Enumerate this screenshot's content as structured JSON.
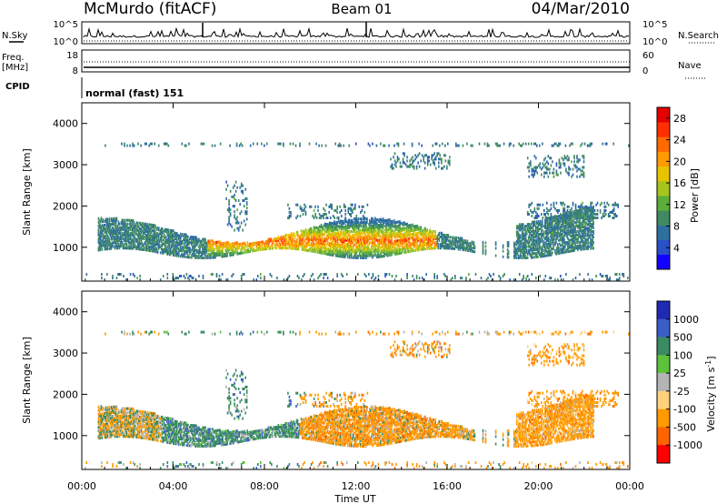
{
  "header": {
    "station": "McMurdo (fitACF)",
    "beam": "Beam 01",
    "date": "04/Mar/2010"
  },
  "noise_panel": {
    "left_label": "N.Sky",
    "left_ticks": [
      "10^5",
      "10^0"
    ],
    "right_label": "N.Search",
    "right_ticks": [
      "10^5",
      "10^0"
    ]
  },
  "freq_panel": {
    "left_label_1": "Freq.",
    "left_label_2": "[MHz]",
    "left_ticks": [
      "18",
      "8"
    ],
    "right_label": "Nave",
    "right_ticks": [
      "60",
      "0"
    ]
  },
  "cpid_panel": {
    "label": "CPID",
    "mode": "normal (fast) 151"
  },
  "time_axis": {
    "label": "Time UT",
    "ticks": [
      "00:00",
      "04:00",
      "08:00",
      "12:00",
      "16:00",
      "20:00",
      "00:00"
    ]
  },
  "chart_data": [
    {
      "type": "heatmap",
      "title": "",
      "xlabel": "",
      "ylabel": "Slant Range [km]",
      "x_range_hours_ut": [
        0,
        24
      ],
      "ylim": [
        180,
        4500
      ],
      "y_ticks": [
        "1000",
        "2000",
        "3000",
        "4000"
      ],
      "colorbar": {
        "label": "Power [dB]",
        "ticks": [
          "4",
          "8",
          "12",
          "16",
          "20",
          "24",
          "28"
        ],
        "range": [
          0,
          30
        ],
        "colors": [
          "#1400ff",
          "#2a50c8",
          "#2f6fa0",
          "#3f8a62",
          "#5cae3a",
          "#a6c41c",
          "#e8c300",
          "#ff9a00",
          "#ff6a00",
          "#ff3000",
          "#e60000"
        ]
      },
      "features": [
        {
          "desc": "echo band",
          "time_ut": [
            0.7,
            22.4
          ],
          "range_km": [
            850,
            1650
          ],
          "power_db": 8
        },
        {
          "desc": "strong echo core",
          "time_ut": [
            5.5,
            15.5
          ],
          "range_km": [
            900,
            1500
          ],
          "power_db": 26
        },
        {
          "desc": "far range echoes",
          "time_ut": [
            13.5,
            16.2
          ],
          "range_km": [
            2900,
            3300
          ],
          "power_db": 8
        },
        {
          "desc": "far range echoes",
          "time_ut": [
            19.5,
            22.0
          ],
          "range_km": [
            2700,
            3200
          ],
          "power_db": 8
        }
      ]
    },
    {
      "type": "heatmap",
      "title": "",
      "xlabel": "Time UT",
      "ylabel": "Slant Range [km]",
      "x_range_hours_ut": [
        0,
        24
      ],
      "ylim": [
        180,
        4500
      ],
      "y_ticks": [
        "1000",
        "2000",
        "3000",
        "4000"
      ],
      "colorbar": {
        "label": "Velocity [m s^-1]",
        "ticks": [
          "1000",
          "500",
          "100",
          "25",
          "-25",
          "-100",
          "-500",
          "-1000"
        ],
        "colors": [
          "#1f2ab4",
          "#3a5ec8",
          "#3a8a62",
          "#5cc23c",
          "#b4b4b4",
          "#ffd27a",
          "#ff9a00",
          "#ff6400",
          "#ff0000"
        ]
      },
      "features": [
        {
          "desc": "toward radar flow",
          "time_ut": [
            3.5,
            9.5
          ],
          "range_km": [
            900,
            1600
          ],
          "velocity_ms": 300
        },
        {
          "desc": "away from radar flow",
          "time_ut": [
            9.5,
            16.5
          ],
          "range_km": [
            900,
            1700
          ],
          "velocity_ms": -300
        },
        {
          "desc": "away from radar flow",
          "time_ut": [
            19.0,
            23.5
          ],
          "range_km": [
            1000,
            2100
          ],
          "velocity_ms": -300
        }
      ]
    }
  ]
}
